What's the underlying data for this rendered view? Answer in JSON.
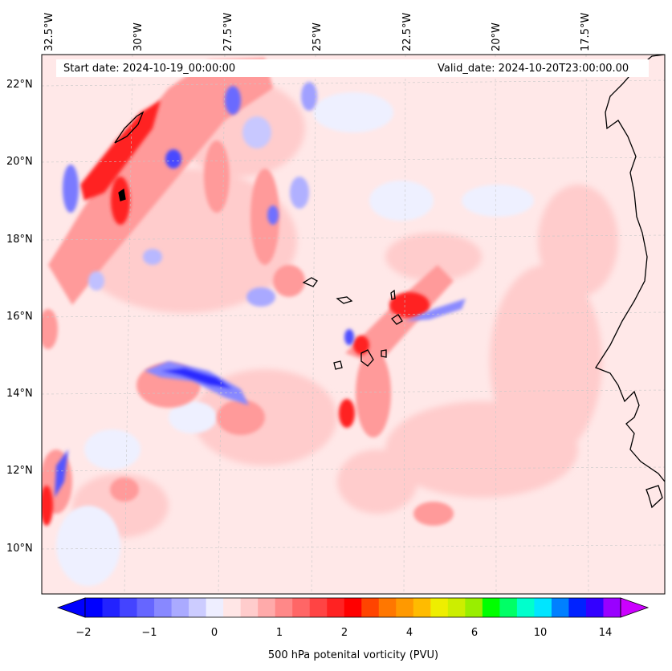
{
  "map": {
    "start_date": "Start date: 2024-10-19_00:00:00",
    "valid_date": "Valid_date: 2024-10-20T23:00:00.00",
    "variable_label": "500 hPa potenital vorticity (PVU)",
    "lon_labels": [
      "32.5°W",
      "30°W",
      "27.5°W",
      "25°W",
      "22.5°W",
      "20°W",
      "17.5°W"
    ],
    "lat_labels": [
      "22°N",
      "20°N",
      "18°N",
      "16°N",
      "14°N",
      "12°N",
      "10°N"
    ],
    "region": "Cape Verde / West African coast",
    "colors": {
      "strong_negative": "#0000ff",
      "weak_negative": "#eef0ff",
      "background_positive": "#ffe6e6",
      "positive": "#ff9a9a",
      "strong_positive": "#ff0000",
      "coastline": "#000000"
    }
  },
  "colorbar": {
    "tick_labels": [
      "−2",
      "−1",
      "0",
      "1",
      "2",
      "4",
      "6",
      "10",
      "14"
    ],
    "colors": [
      "#0000ff",
      "#2222ff",
      "#4444ff",
      "#6666ff",
      "#8888ff",
      "#aaaaff",
      "#ccccff",
      "#eeeeff",
      "#ffe6e6",
      "#ffcccc",
      "#ffaaaa",
      "#ff8888",
      "#ff6666",
      "#ff4444",
      "#ff2222",
      "#ff0000",
      "#ff4400",
      "#ff7700",
      "#ff9900",
      "#ffbb00",
      "#eeee00",
      "#ccee00",
      "#99ee00",
      "#00ff00",
      "#00ff66",
      "#00ffcc",
      "#00e5ff",
      "#0080ff",
      "#0022ff",
      "#3300ff",
      "#9900ff"
    ],
    "extend_left_color": "#0000ff",
    "extend_right_color": "#cc00ff"
  }
}
